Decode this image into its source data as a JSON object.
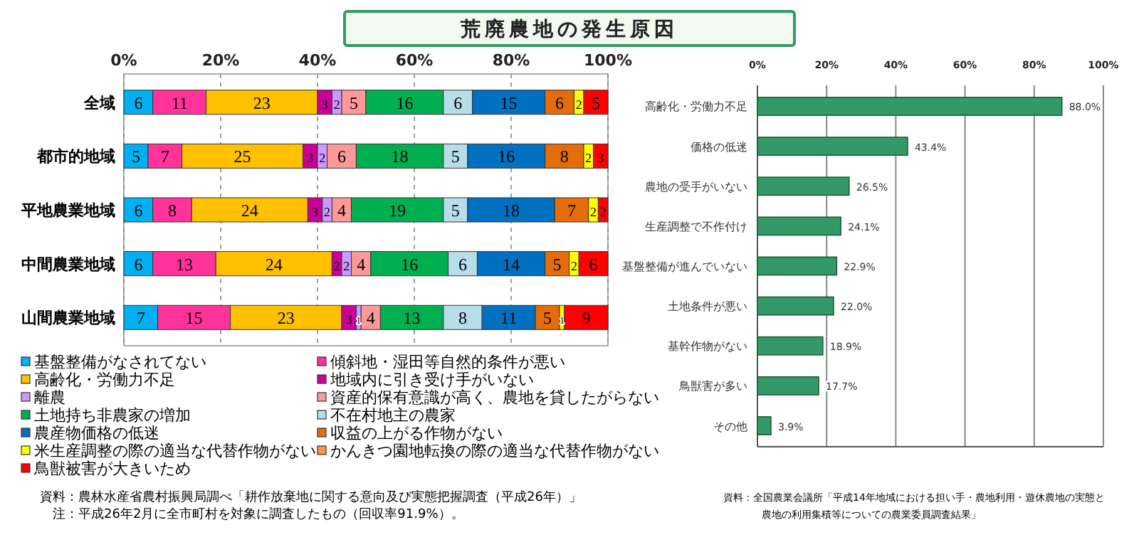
{
  "chart_data": [
    {
      "type": "bar",
      "orientation": "horizontal",
      "stacked": true,
      "title": "荒廃農地の発生原因",
      "categories": [
        "全域",
        "都市的地域",
        "平地農業地域",
        "中間農業地域",
        "山間農業地域"
      ],
      "series": [
        {
          "name": "基盤整備がなされてない",
          "color": "#00b0f0",
          "values": [
            6,
            5,
            6,
            6,
            7
          ]
        },
        {
          "name": "傾斜地・湿田等自然的条件が悪い",
          "color": "#ff3399",
          "values": [
            11,
            7,
            8,
            13,
            15
          ]
        },
        {
          "name": "高齢化・労働力不足",
          "color": "#ffc000",
          "values": [
            23,
            25,
            24,
            24,
            23
          ]
        },
        {
          "name": "地域内に引き受け手がいない",
          "color": "#cc0099",
          "values": [
            3,
            3,
            3,
            2,
            3
          ]
        },
        {
          "name": "離農",
          "color": "#cc99ff",
          "values": [
            2,
            2,
            2,
            2,
            1
          ]
        },
        {
          "name": "資産的保有意識が高く、農地を貸したがらない",
          "color": "#ff9999",
          "values": [
            5,
            6,
            4,
            4,
            4
          ]
        },
        {
          "name": "土地持ち非農家の増加",
          "color": "#00b050",
          "values": [
            16,
            18,
            19,
            16,
            13
          ]
        },
        {
          "name": "不在村地主の農家",
          "color": "#b7dee8",
          "values": [
            6,
            5,
            5,
            6,
            8
          ]
        },
        {
          "name": "農産物価格の低迷",
          "color": "#0070c0",
          "values": [
            15,
            16,
            18,
            14,
            11
          ]
        },
        {
          "name": "収益の上がる作物がない",
          "color": "#e46c0a",
          "values": [
            6,
            8,
            7,
            5,
            5
          ]
        },
        {
          "name": "米生産調整の際の適当な代替作物がない",
          "color": "#ffff00",
          "values": [
            2,
            2,
            2,
            2,
            1
          ]
        },
        {
          "name": "かんきつ園地転換の際の適当な代替作物がない",
          "color": "#f79646",
          "values": [
            null,
            null,
            null,
            null,
            null
          ]
        },
        {
          "name": "鳥獣被害が大きいため",
          "color": "#ff0000",
          "values": [
            5,
            3,
            2,
            6,
            9
          ]
        }
      ],
      "xlim": [
        0,
        100
      ],
      "xticks": [
        {
          "value": 0,
          "label": "0%"
        },
        {
          "value": 20,
          "label": "20%"
        },
        {
          "value": 40,
          "label": "40%"
        },
        {
          "value": 60,
          "label": "60%"
        },
        {
          "value": 80,
          "label": "80%"
        },
        {
          "value": 100,
          "label": "100%"
        }
      ],
      "grid": "x",
      "legend": "bottom",
      "data_labels": true,
      "annotations": [
        "資料：農林水産省農村振興局調べ「耕作放棄地に関する意向及び実態把握調査（平成26年）」",
        "注：平成26年2月に全市町村を対象に調査したもの（回収率91.9%）。"
      ]
    },
    {
      "type": "bar",
      "orientation": "horizontal",
      "categories": [
        "高齢化・労働力不足",
        "価格の低迷",
        "農地の受手がいない",
        "生産調整で不作付け",
        "基盤整備が進んでいない",
        "土地条件が悪い",
        "基幹作物がない",
        "鳥獣害が多い",
        "その他"
      ],
      "values": [
        88.0,
        43.4,
        26.5,
        24.1,
        22.9,
        22.0,
        18.9,
        17.7,
        3.9
      ],
      "color": "#339966",
      "value_labels": [
        "88.0%",
        "43.4%",
        "26.5%",
        "24.1%",
        "22.9%",
        "22.0%",
        "18.9%",
        "17.7%",
        "3.9%"
      ],
      "xlim": [
        0,
        100
      ],
      "xticks": [
        {
          "value": 0,
          "label": "0%"
        },
        {
          "value": 20,
          "label": "20%"
        },
        {
          "value": 40,
          "label": "40%"
        },
        {
          "value": 60,
          "label": "60%"
        },
        {
          "value": 80,
          "label": "80%"
        },
        {
          "value": 100,
          "label": "100%"
        }
      ],
      "grid": "x",
      "annotations": [
        "資料：全国農業会議所「平成14年地域における担い手・農地利用・遊休農地の実態と",
        "農地の利用集積等についての農業委員調査結果」"
      ]
    }
  ]
}
